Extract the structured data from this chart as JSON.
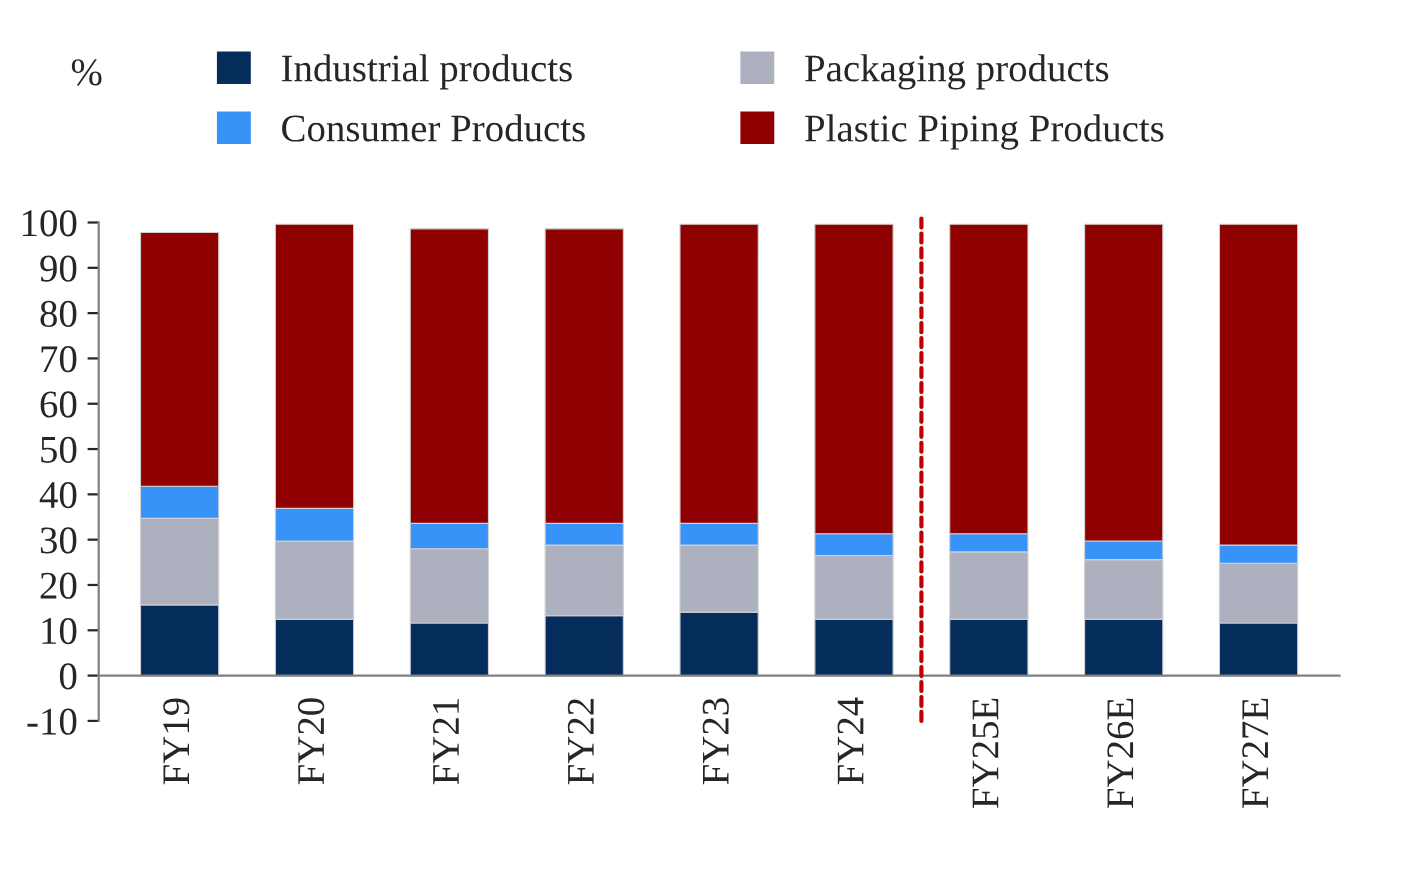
{
  "chart_data": {
    "type": "bar",
    "stacked": true,
    "ylabel": "%",
    "categories": [
      "FY19",
      "FY20",
      "FY21",
      "FY22",
      "FY23",
      "FY24",
      "FY25E",
      "FY26E",
      "FY27E"
    ],
    "series": [
      {
        "name": "Industrial products",
        "color": "#052d5c",
        "values": [
          15.6,
          12.4,
          11.6,
          13.2,
          14.0,
          12.4,
          12.4,
          12.4,
          11.6
        ]
      },
      {
        "name": "Packaging products",
        "color": "#adb1bf",
        "values": [
          19.1,
          17.3,
          16.4,
          15.6,
          14.8,
          14.1,
          14.9,
          13.2,
          13.2
        ]
      },
      {
        "name": "Consumer Products",
        "color": "#3893f8",
        "values": [
          7.1,
          7.2,
          5.6,
          4.8,
          4.8,
          4.8,
          4.0,
          4.1,
          4.0
        ]
      },
      {
        "name": "Plastic Piping Products",
        "color": "#8f0000",
        "values": [
          56.0,
          62.7,
          65.0,
          65.0,
          66.0,
          68.3,
          68.3,
          69.9,
          70.8
        ]
      }
    ],
    "ylim": [
      -10,
      100
    ],
    "yticks": [
      -10,
      0,
      10,
      20,
      30,
      40,
      50,
      60,
      70,
      80,
      90,
      100
    ],
    "grid": false,
    "legend": "top"
  }
}
